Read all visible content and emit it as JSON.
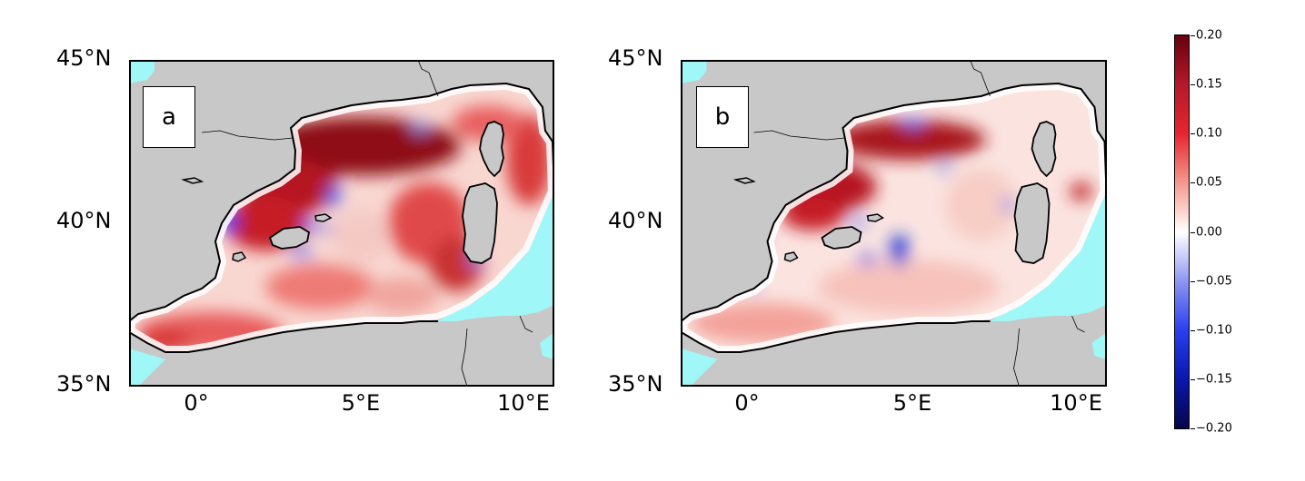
{
  "panels": [
    {
      "id": "a",
      "tag": "a"
    },
    {
      "id": "b",
      "tag": "b"
    }
  ],
  "axes": {
    "lat_ticks": [
      "45°N",
      "40°N",
      "35°N"
    ],
    "lon_ticks": [
      "0°",
      "5°E",
      "10°E"
    ]
  },
  "colorbar": {
    "ticks": [
      "0.20",
      "0.15",
      "0.10",
      "0.05",
      "0.00",
      "−0.05",
      "−0.10",
      "−0.15",
      "−0.20"
    ],
    "min": -0.2,
    "max": 0.2,
    "colormap": "seismic (blue–white–red)"
  },
  "colors": {
    "land": "#c8c8c8",
    "outside_domain": "#9ff7f7",
    "sea_base": "#fbe1dd"
  }
}
